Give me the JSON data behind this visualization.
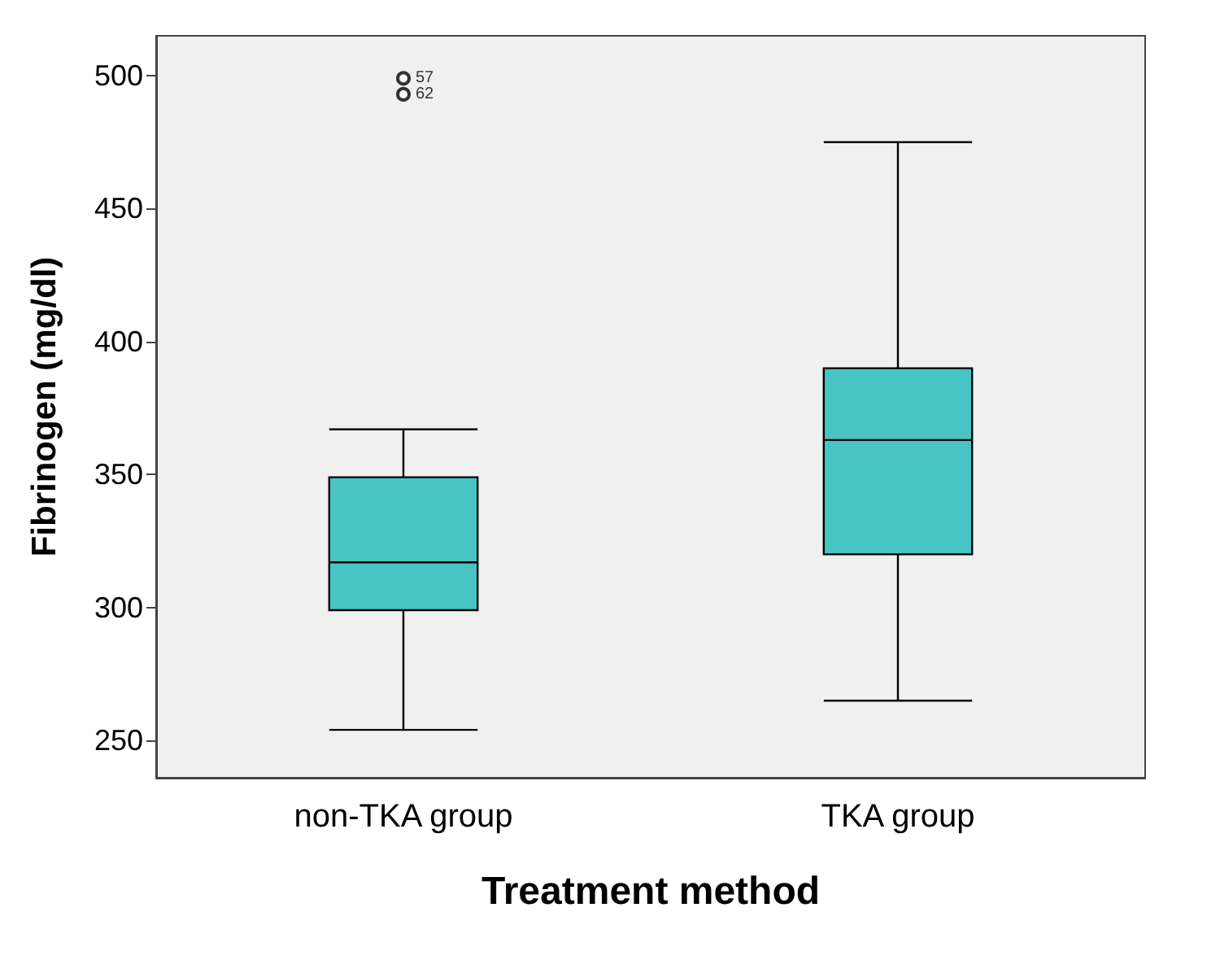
{
  "chart_data": {
    "type": "box",
    "xlabel": "Treatment method",
    "ylabel": "Fibrinogen (mg/dl)",
    "categories": [
      "non-TKA group",
      "TKA group"
    ],
    "boxes": [
      {
        "low": 254,
        "q1": 299,
        "median": 317,
        "q3": 349,
        "high": 367,
        "outliers": [
          499,
          493
        ]
      },
      {
        "low": 265,
        "q1": 320,
        "median": 363,
        "q3": 390,
        "high": 475
      }
    ],
    "color": "#48c4c4",
    "ylim": [
      236,
      515
    ],
    "yticks": [
      250,
      300,
      350,
      400,
      450,
      500
    ],
    "annotations": [
      "57",
      "62"
    ]
  }
}
